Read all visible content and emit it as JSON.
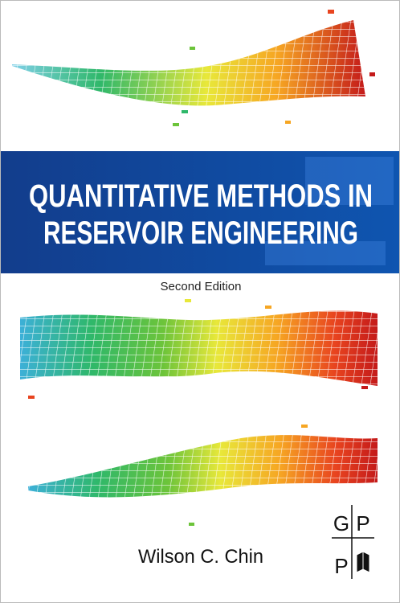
{
  "cover": {
    "title_lines": [
      "QUANTITATIVE METHODS IN",
      "RESERVOIR ENGINEERING"
    ],
    "edition": "Second Edition",
    "author": "Wilson C. Chin",
    "publisher_logo": [
      "G",
      "P",
      "P"
    ]
  }
}
